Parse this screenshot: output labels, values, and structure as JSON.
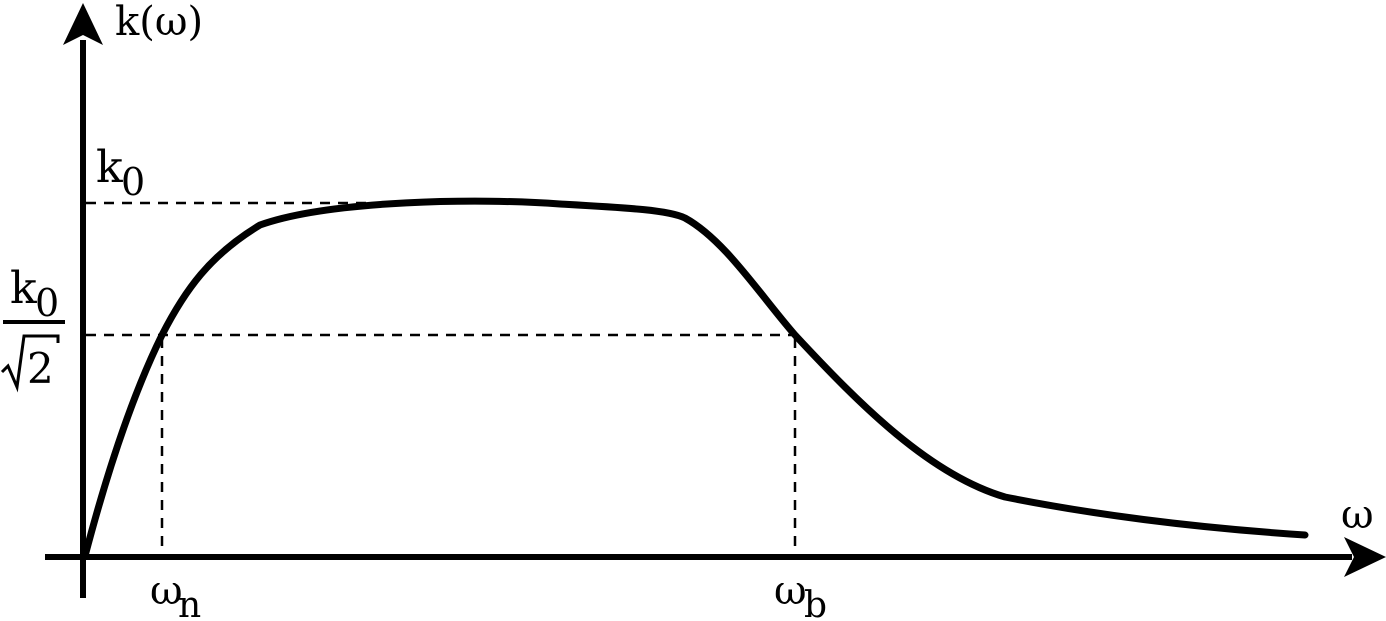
{
  "diagram": {
    "y_axis_label": "k(ω)",
    "x_axis_label": "ω",
    "k0_label": {
      "base": "k",
      "sub": "0"
    },
    "k0_over_sqrt2_label": {
      "numerator_base": "k",
      "numerator_sub": "0",
      "denominator_radicand": "2"
    },
    "omega_n_label": {
      "base": "ω",
      "sub": "n"
    },
    "omega_b_label": {
      "base": "ω",
      "sub": "b"
    }
  },
  "colors": {
    "stroke": "#000000",
    "background": "#ffffff"
  }
}
